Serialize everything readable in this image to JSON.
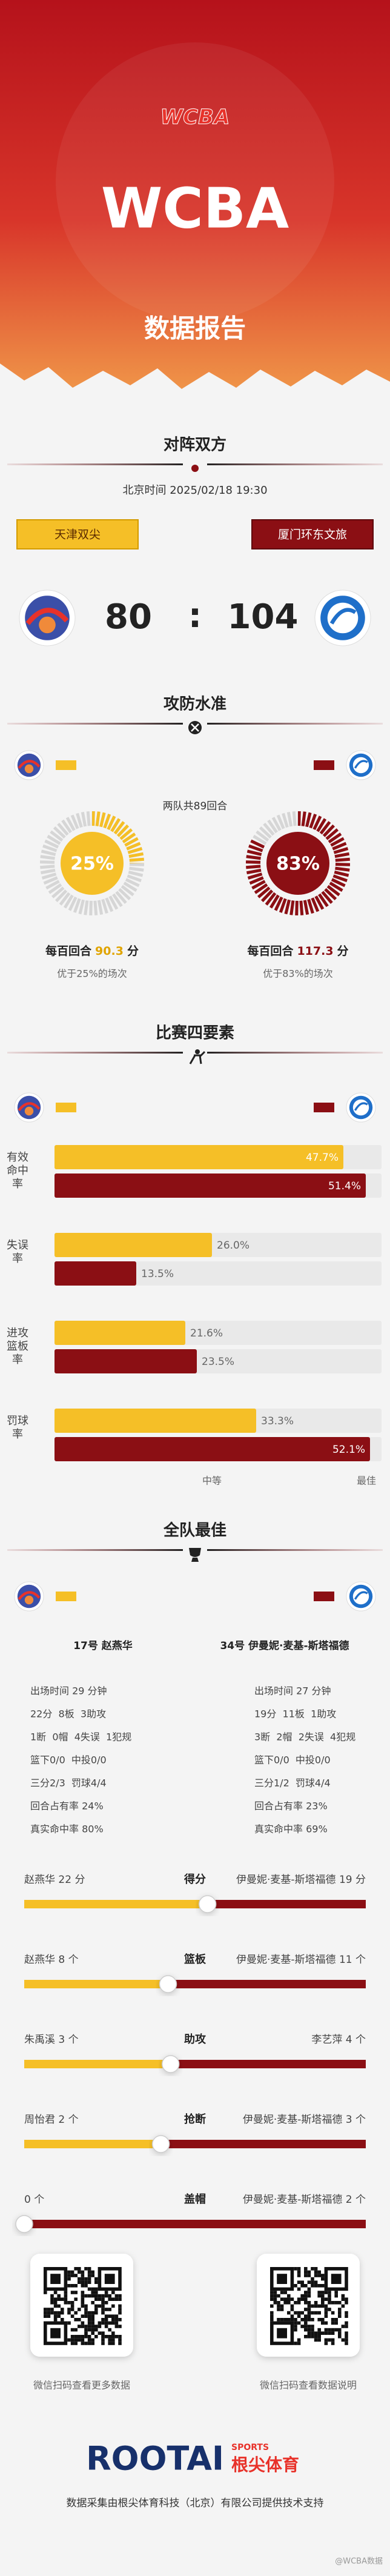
{
  "header": {
    "logo": "WCBA",
    "title": "WCBA",
    "subtitle": "数据报告"
  },
  "matchup": {
    "title": "对阵双方",
    "time": "北京时间 2025/02/18 19:30",
    "home": {
      "name": "天津双尖",
      "score": 80
    },
    "away": {
      "name": "厦门环东文旅",
      "score": 104
    },
    "separator": ":"
  },
  "efficiency": {
    "title": "攻防水准",
    "possessions": "两队共89回合",
    "home": {
      "percentile": 25,
      "percentile_label": "25%",
      "rating_prefix": "每百回合",
      "rating": 90.3,
      "rating_unit": "分",
      "note": "优于25%的场次"
    },
    "away": {
      "percentile": 83,
      "percentile_label": "83%",
      "rating_prefix": "每百回合",
      "rating": 117.3,
      "rating_unit": "分",
      "note": "优于83%的场次"
    }
  },
  "four_factors": {
    "title": "比赛四要素",
    "factors": [
      {
        "label": "有效命中率",
        "home": 47.7,
        "home_label": "47.7%",
        "away": 51.4,
        "away_label": "51.4%"
      },
      {
        "label": "失误率",
        "home": 26.0,
        "home_label": "26.0%",
        "away": 13.5,
        "away_label": "13.5%"
      },
      {
        "label": "进攻篮板率",
        "home": 21.6,
        "home_label": "21.6%",
        "away": 23.5,
        "away_label": "23.5%"
      },
      {
        "label": "罚球率",
        "home": 33.3,
        "home_label": "33.3%",
        "away": 52.1,
        "away_label": "52.1%"
      }
    ],
    "scale_labels": [
      "中等",
      "最佳"
    ]
  },
  "best": {
    "title": "全队最佳",
    "home": {
      "player": "17号 赵燕华",
      "stats": [
        "出场时间 29 分钟",
        "22分  8板  3助攻",
        "1断  0帽  4失误  1犯规",
        "篮下0/0  中投0/0",
        "三分2/3  罚球4/4",
        "回合占有率 24%",
        "真实命中率 80%"
      ]
    },
    "away": {
      "player": "34号 伊曼妮·麦基-斯塔福德",
      "stats": [
        "出场时间 27 分钟",
        "19分  11板  1助攻",
        "3断  2帽  2失误  4犯规",
        "篮下0/0  中投0/0",
        "三分1/2  罚球4/4",
        "回合占有率 23%",
        "真实命中率 69%"
      ]
    }
  },
  "leaders": [
    {
      "category": "得分",
      "home": {
        "text": "赵燕华 22 分",
        "value": 22
      },
      "away": {
        "text": "伊曼妮·麦基-斯塔福德 19 分",
        "value": 19
      }
    },
    {
      "category": "篮板",
      "home": {
        "text": "赵燕华 8 个",
        "value": 8
      },
      "away": {
        "text": "伊曼妮·麦基-斯塔福德 11 个",
        "value": 11
      }
    },
    {
      "category": "助攻",
      "home": {
        "text": "朱禹溪 3 个",
        "value": 3
      },
      "away": {
        "text": "李艺萍 4 个",
        "value": 4
      }
    },
    {
      "category": "抢断",
      "home": {
        "text": "周怡君 2 个",
        "value": 2
      },
      "away": {
        "text": "伊曼妮·麦基-斯塔福德 3 个",
        "value": 3
      }
    },
    {
      "category": "盖帽",
      "home": {
        "text": "0 个",
        "value": 0
      },
      "away": {
        "text": "伊曼妮·麦基-斯塔福德 2 个",
        "value": 2
      }
    }
  ],
  "footer": {
    "qr_left": "微信扫码查看更多数据",
    "qr_right": "微信扫码查看数据说明",
    "brand": "ROOTAI",
    "brand_sports": "SPORTS",
    "brand_cn": "根尖体育",
    "credit": "数据采集由根尖体育科技（北京）有限公司提供技术支持",
    "watermark": "@WCBA数据"
  }
}
